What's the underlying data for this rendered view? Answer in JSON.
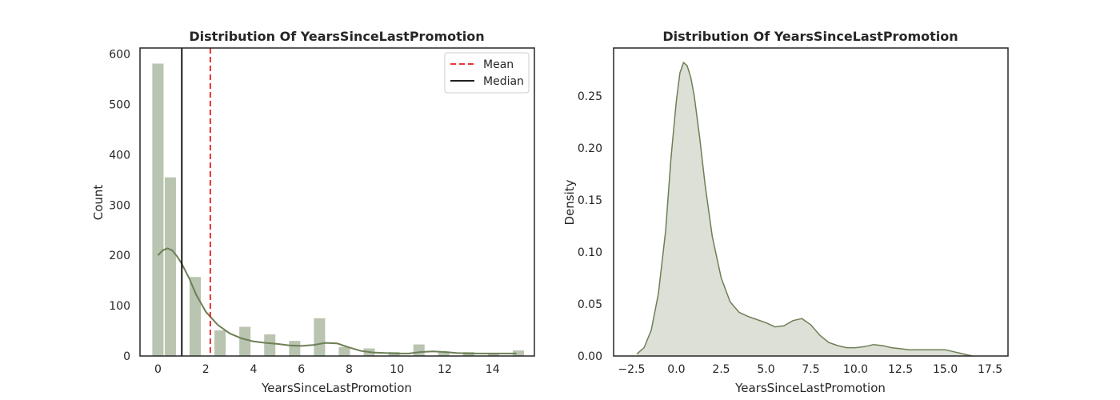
{
  "chart_data": [
    {
      "type": "bar",
      "title": "Distribution Of YearsSinceLastPromotion",
      "xlabel": "YearsSinceLastPromotion",
      "ylabel": "Count",
      "xlim": [
        -0.75,
        15.75
      ],
      "ylim": [
        0,
        612
      ],
      "xticks": [
        0,
        2,
        4,
        6,
        8,
        10,
        12,
        14
      ],
      "yticks": [
        0,
        100,
        200,
        300,
        400,
        500,
        600
      ],
      "bar_width": 0.47,
      "bins": [
        {
          "x": 0,
          "count": 581
        },
        {
          "x": 0.52,
          "count": 355
        },
        {
          "x": 1.56,
          "count": 157
        },
        {
          "x": 2.6,
          "count": 51
        },
        {
          "x": 3.64,
          "count": 58
        },
        {
          "x": 4.68,
          "count": 43
        },
        {
          "x": 5.72,
          "count": 30
        },
        {
          "x": 6.76,
          "count": 75
        },
        {
          "x": 7.8,
          "count": 18
        },
        {
          "x": 8.84,
          "count": 15
        },
        {
          "x": 9.88,
          "count": 8
        },
        {
          "x": 10.92,
          "count": 23
        },
        {
          "x": 11.96,
          "count": 9
        },
        {
          "x": 13.0,
          "count": 8
        },
        {
          "x": 14.04,
          "count": 6
        },
        {
          "x": 15.08,
          "count": 11
        }
      ],
      "kde_line": {
        "x": [
          0,
          0.2,
          0.4,
          0.6,
          0.8,
          1,
          1.3,
          1.6,
          2,
          2.5,
          3,
          3.5,
          4,
          4.5,
          5,
          5.5,
          6,
          6.5,
          7,
          7.5,
          8,
          8.5,
          9,
          9.5,
          10,
          10.5,
          11,
          11.5,
          12,
          12.5,
          13,
          13.5,
          14,
          14.5,
          15
        ],
        "y": [
          200,
          210,
          214,
          210,
          198,
          183,
          155,
          122,
          88,
          62,
          45,
          35,
          29,
          26,
          24,
          21,
          20,
          22,
          26,
          25,
          17,
          10,
          7,
          6,
          5,
          5,
          8,
          9,
          8,
          6,
          5,
          5,
          5,
          5,
          5
        ]
      },
      "reference_lines": [
        {
          "name": "Mean",
          "x": 2.19,
          "style": "dashed",
          "color": "#e31a1c"
        },
        {
          "name": "Median",
          "x": 1.0,
          "style": "solid",
          "color": "#000000"
        }
      ],
      "legend_position": "top-right",
      "colors": {
        "bar": "#b9c4b1",
        "kde": "#6d7f55"
      }
    },
    {
      "type": "area",
      "title": "Distribution Of YearsSinceLastPromotion",
      "xlabel": "YearsSinceLastPromotion",
      "ylabel": "Density",
      "xlim": [
        -3.5,
        18.5
      ],
      "ylim": [
        0,
        0.296
      ],
      "xticks": [
        -2.5,
        0.0,
        2.5,
        5.0,
        7.5,
        10.0,
        12.5,
        15.0,
        17.5
      ],
      "xtick_labels": [
        "−2.5",
        "0.0",
        "2.5",
        "5.0",
        "7.5",
        "10.0",
        "12.5",
        "15.0",
        "17.5"
      ],
      "yticks": [
        0.0,
        0.05,
        0.1,
        0.15,
        0.2,
        0.25
      ],
      "ytick_labels": [
        "0.00",
        "0.05",
        "0.10",
        "0.15",
        "0.20",
        "0.25"
      ],
      "x": [
        -2.2,
        -1.8,
        -1.4,
        -1.0,
        -0.6,
        -0.3,
        0.0,
        0.2,
        0.4,
        0.6,
        0.8,
        1.0,
        1.3,
        1.6,
        2.0,
        2.5,
        3.0,
        3.5,
        4.0,
        4.5,
        5.0,
        5.5,
        6.0,
        6.5,
        7.0,
        7.5,
        8.0,
        8.5,
        9.0,
        9.5,
        10.0,
        10.5,
        11.0,
        11.5,
        12.0,
        12.5,
        13.0,
        14.0,
        15.0,
        15.5,
        16.0,
        16.5
      ],
      "y": [
        0.002,
        0.008,
        0.025,
        0.06,
        0.12,
        0.19,
        0.245,
        0.272,
        0.282,
        0.279,
        0.268,
        0.25,
        0.21,
        0.165,
        0.115,
        0.075,
        0.052,
        0.042,
        0.038,
        0.035,
        0.032,
        0.028,
        0.029,
        0.034,
        0.036,
        0.03,
        0.02,
        0.013,
        0.01,
        0.008,
        0.008,
        0.009,
        0.011,
        0.01,
        0.008,
        0.007,
        0.006,
        0.006,
        0.006,
        0.004,
        0.002,
        0.0
      ],
      "colors": {
        "line": "#6d7f55",
        "fill": "#dde0d6"
      }
    }
  ]
}
